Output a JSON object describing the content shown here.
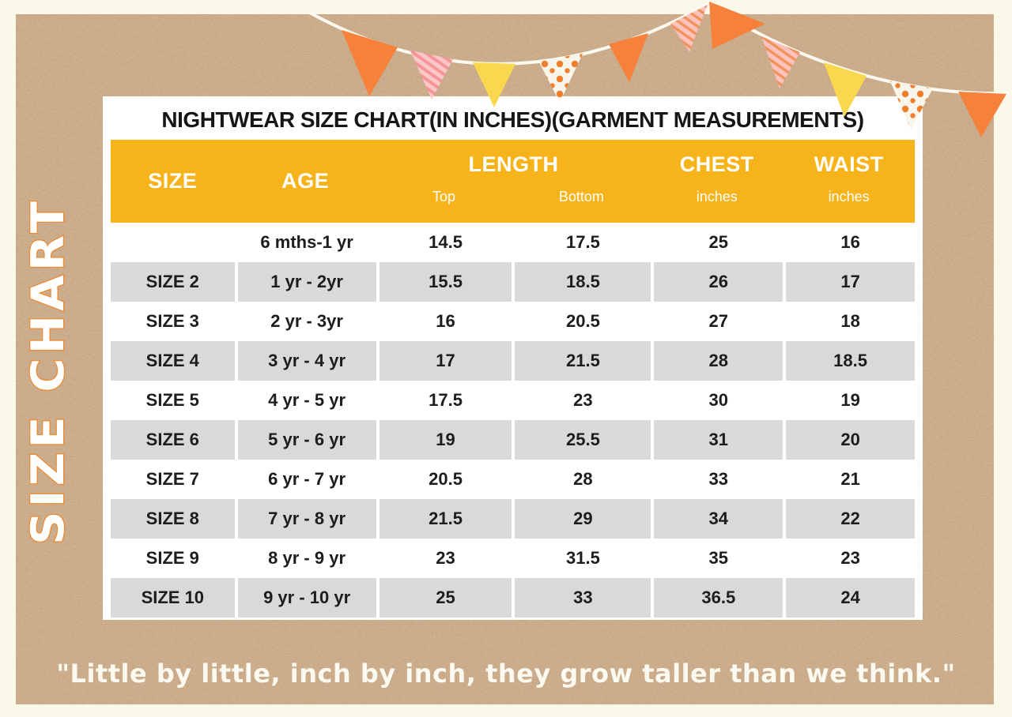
{
  "colors": {
    "cream": "#FAF8E9",
    "kraft": "#C19A73",
    "panel": "#FFFFFF",
    "header_yellow": "#F6B41A",
    "row_gray": "#D9D9D9",
    "accent_orange": "#EC8B33",
    "flag_orange": "#F5813B",
    "flag_yellow": "#F9D84F",
    "flag_pink": "#FBC7C9"
  },
  "side_label": "SIZE CHART",
  "title": "NIGHTWEAR SIZE CHART(IN INCHES)(GARMENT MEASUREMENTS)",
  "quote": "\"Little by little, inch by inch, they grow taller than we think.\"",
  "table": {
    "headers": {
      "size": "SIZE",
      "age": "AGE",
      "length": "LENGTH",
      "top": "Top",
      "bottom": "Bottom",
      "chest": "CHEST",
      "waist": "WAIST",
      "chest_unit": "inches",
      "waist_unit": "inches"
    },
    "rows": [
      {
        "size": "",
        "age": "6 mths-1 yr",
        "top": "14.5",
        "bottom": "17.5",
        "chest": "25",
        "waist": "16"
      },
      {
        "size": "SIZE 2",
        "age": "1 yr - 2yr",
        "top": "15.5",
        "bottom": "18.5",
        "chest": "26",
        "waist": "17"
      },
      {
        "size": "SIZE 3",
        "age": "2 yr - 3yr",
        "top": "16",
        "bottom": "20.5",
        "chest": "27",
        "waist": "18"
      },
      {
        "size": "SIZE 4",
        "age": "3 yr - 4 yr",
        "top": "17",
        "bottom": "21.5",
        "chest": "28",
        "waist": "18.5"
      },
      {
        "size": "SIZE 5",
        "age": "4 yr - 5 yr",
        "top": "17.5",
        "bottom": "23",
        "chest": "30",
        "waist": "19"
      },
      {
        "size": "SIZE 6",
        "age": "5 yr - 6 yr",
        "top": "19",
        "bottom": "25.5",
        "chest": "31",
        "waist": "20"
      },
      {
        "size": "SIZE 7",
        "age": "6 yr - 7 yr",
        "top": "20.5",
        "bottom": "28",
        "chest": "33",
        "waist": "21"
      },
      {
        "size": "SIZE 8",
        "age": "7 yr - 8 yr",
        "top": "21.5",
        "bottom": "29",
        "chest": "34",
        "waist": "22"
      },
      {
        "size": "SIZE 9",
        "age": "8 yr - 9 yr",
        "top": "23",
        "bottom": "31.5",
        "chest": "35",
        "waist": "23"
      },
      {
        "size": "SIZE 10",
        "age": "9 yr - 10 yr",
        "top": "25",
        "bottom": "33",
        "chest": "36.5",
        "waist": "24"
      }
    ]
  },
  "chart_data": {
    "type": "table",
    "title": "NIGHTWEAR SIZE CHART(IN INCHES)(GARMENT MEASUREMENTS)",
    "columns": [
      "SIZE",
      "AGE",
      "LENGTH Top",
      "LENGTH Bottom",
      "CHEST inches",
      "WAIST inches"
    ],
    "rows": [
      [
        "",
        "6 mths-1 yr",
        14.5,
        17.5,
        25,
        16
      ],
      [
        "SIZE 2",
        "1 yr - 2yr",
        15.5,
        18.5,
        26,
        17
      ],
      [
        "SIZE 3",
        "2 yr - 3yr",
        16,
        20.5,
        27,
        18
      ],
      [
        "SIZE 4",
        "3 yr - 4 yr",
        17,
        21.5,
        28,
        18.5
      ],
      [
        "SIZE 5",
        "4 yr - 5 yr",
        17.5,
        23,
        30,
        19
      ],
      [
        "SIZE 6",
        "5 yr - 6 yr",
        19,
        25.5,
        31,
        20
      ],
      [
        "SIZE 7",
        "6 yr - 7 yr",
        20.5,
        28,
        33,
        21
      ],
      [
        "SIZE 8",
        "7 yr - 8 yr",
        21.5,
        29,
        34,
        22
      ],
      [
        "SIZE 9",
        "8 yr - 9 yr",
        23,
        31.5,
        35,
        23
      ],
      [
        "SIZE 10",
        "9 yr - 10 yr",
        25,
        33,
        36.5,
        24
      ]
    ]
  }
}
